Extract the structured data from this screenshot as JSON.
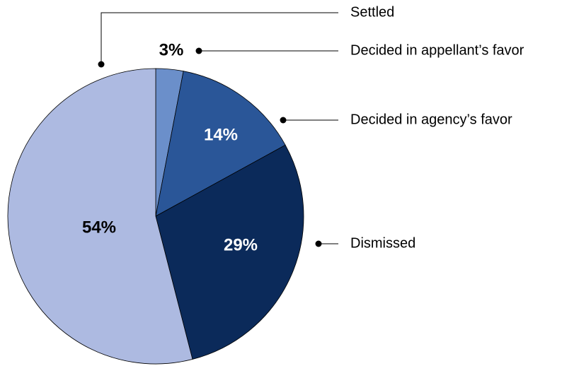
{
  "chart_data": {
    "type": "pie",
    "categories": [
      "Decided in appellant’s favor",
      "Decided in agency’s favor",
      "Dismissed",
      "Settled"
    ],
    "values": [
      3,
      14,
      29,
      54
    ],
    "value_labels": [
      "3%",
      "14%",
      "29%",
      "54%"
    ],
    "colors": [
      "#6b8fca",
      "#2a5698",
      "#0b2a5a",
      "#adbae1"
    ]
  }
}
